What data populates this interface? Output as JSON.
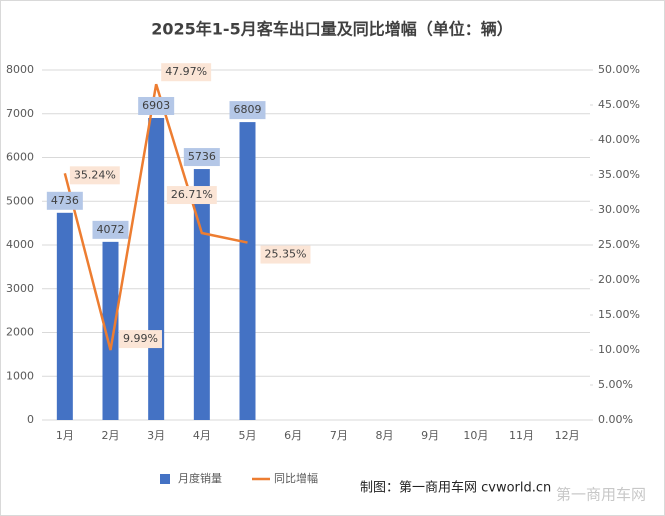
{
  "chart_data": {
    "type": "bar-line",
    "title": "2025年1-5月客车出口量及同比增幅（单位：辆）",
    "categories": [
      "1月",
      "2月",
      "3月",
      "4月",
      "5月",
      "6月",
      "7月",
      "8月",
      "9月",
      "10月",
      "11月",
      "12月"
    ],
    "series": [
      {
        "name": "月度销量",
        "color": "#4472c4",
        "type": "bar",
        "values": [
          4736,
          4072,
          6903,
          5736,
          6809,
          null,
          null,
          null,
          null,
          null,
          null,
          null
        ]
      },
      {
        "name": "同比增幅",
        "color": "#ed7d31",
        "type": "line",
        "axis": "y2",
        "values": [
          35.24,
          9.99,
          47.97,
          26.71,
          25.35,
          null,
          null,
          null,
          null,
          null,
          null,
          null
        ],
        "value_labels": [
          "35.24%",
          "9.99%",
          "47.97%",
          "26.71%",
          "25.35%",
          null,
          null,
          null,
          null,
          null,
          null,
          null
        ]
      }
    ],
    "ylim": [
      0,
      8000
    ],
    "yticks": [
      0,
      1000,
      2000,
      3000,
      4000,
      5000,
      6000,
      7000,
      8000
    ],
    "y2lim": [
      0,
      50
    ],
    "y2ticks": [
      {
        "value": 0,
        "label": "0.00%"
      },
      {
        "value": 5,
        "label": "5.00%"
      },
      {
        "value": 10,
        "label": "10.00%"
      },
      {
        "value": 15,
        "label": "15.00%"
      },
      {
        "value": 20,
        "label": "20.00%"
      },
      {
        "value": 25,
        "label": "25.00%"
      },
      {
        "value": 30,
        "label": "30.00%"
      },
      {
        "value": 35,
        "label": "35.00%"
      },
      {
        "value": 40,
        "label": "40.00%"
      },
      {
        "value": 45,
        "label": "45.00%"
      },
      {
        "value": 50,
        "label": "50.00%"
      }
    ],
    "grid": true,
    "legend": "bottom",
    "source": "制图：第一商用车网 cvworld.cn",
    "watermark": "第一商用车网"
  }
}
